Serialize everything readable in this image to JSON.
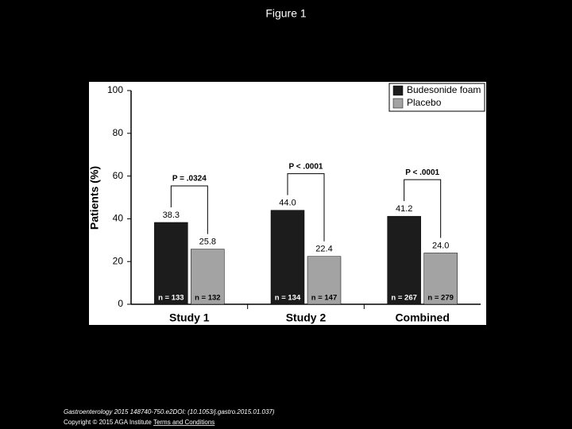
{
  "title": "Figure 1",
  "chart_data": {
    "type": "bar",
    "y_label": "Patients (%)",
    "categories": [
      "Study 1",
      "Study 2",
      "Combined"
    ],
    "series": [
      {
        "name": "Budesonide foam",
        "color": "#1c1c1c",
        "values": [
          38.3,
          44,
          41.2
        ],
        "value_labels": [
          "38.3",
          "44.0",
          "41.2"
        ],
        "n_labels": [
          "n = 133",
          "n = 134",
          "n = 267"
        ]
      },
      {
        "name": "Placebo",
        "color": "#a3a3a3",
        "values": [
          25.8,
          22.4,
          24
        ],
        "value_labels": [
          "25.8",
          "22.4",
          "24.0"
        ],
        "n_labels": [
          "n = 132",
          "n = 147",
          "n = 279"
        ]
      }
    ],
    "p_values": [
      "P = .0324",
      "P < .0001",
      "P < .0001"
    ],
    "ylim": [
      0,
      100
    ],
    "yticks": [
      0,
      20,
      40,
      60,
      80,
      100
    ],
    "grid": false,
    "legend": "top-right"
  },
  "footer": {
    "citation": "Gastroenterology 2015 148740-750.e2DOI: (10.1053/j.gastro.2015.01.037)",
    "copyright": "Copyright © 2015 AGA Institute",
    "link": "Terms and Conditions"
  }
}
